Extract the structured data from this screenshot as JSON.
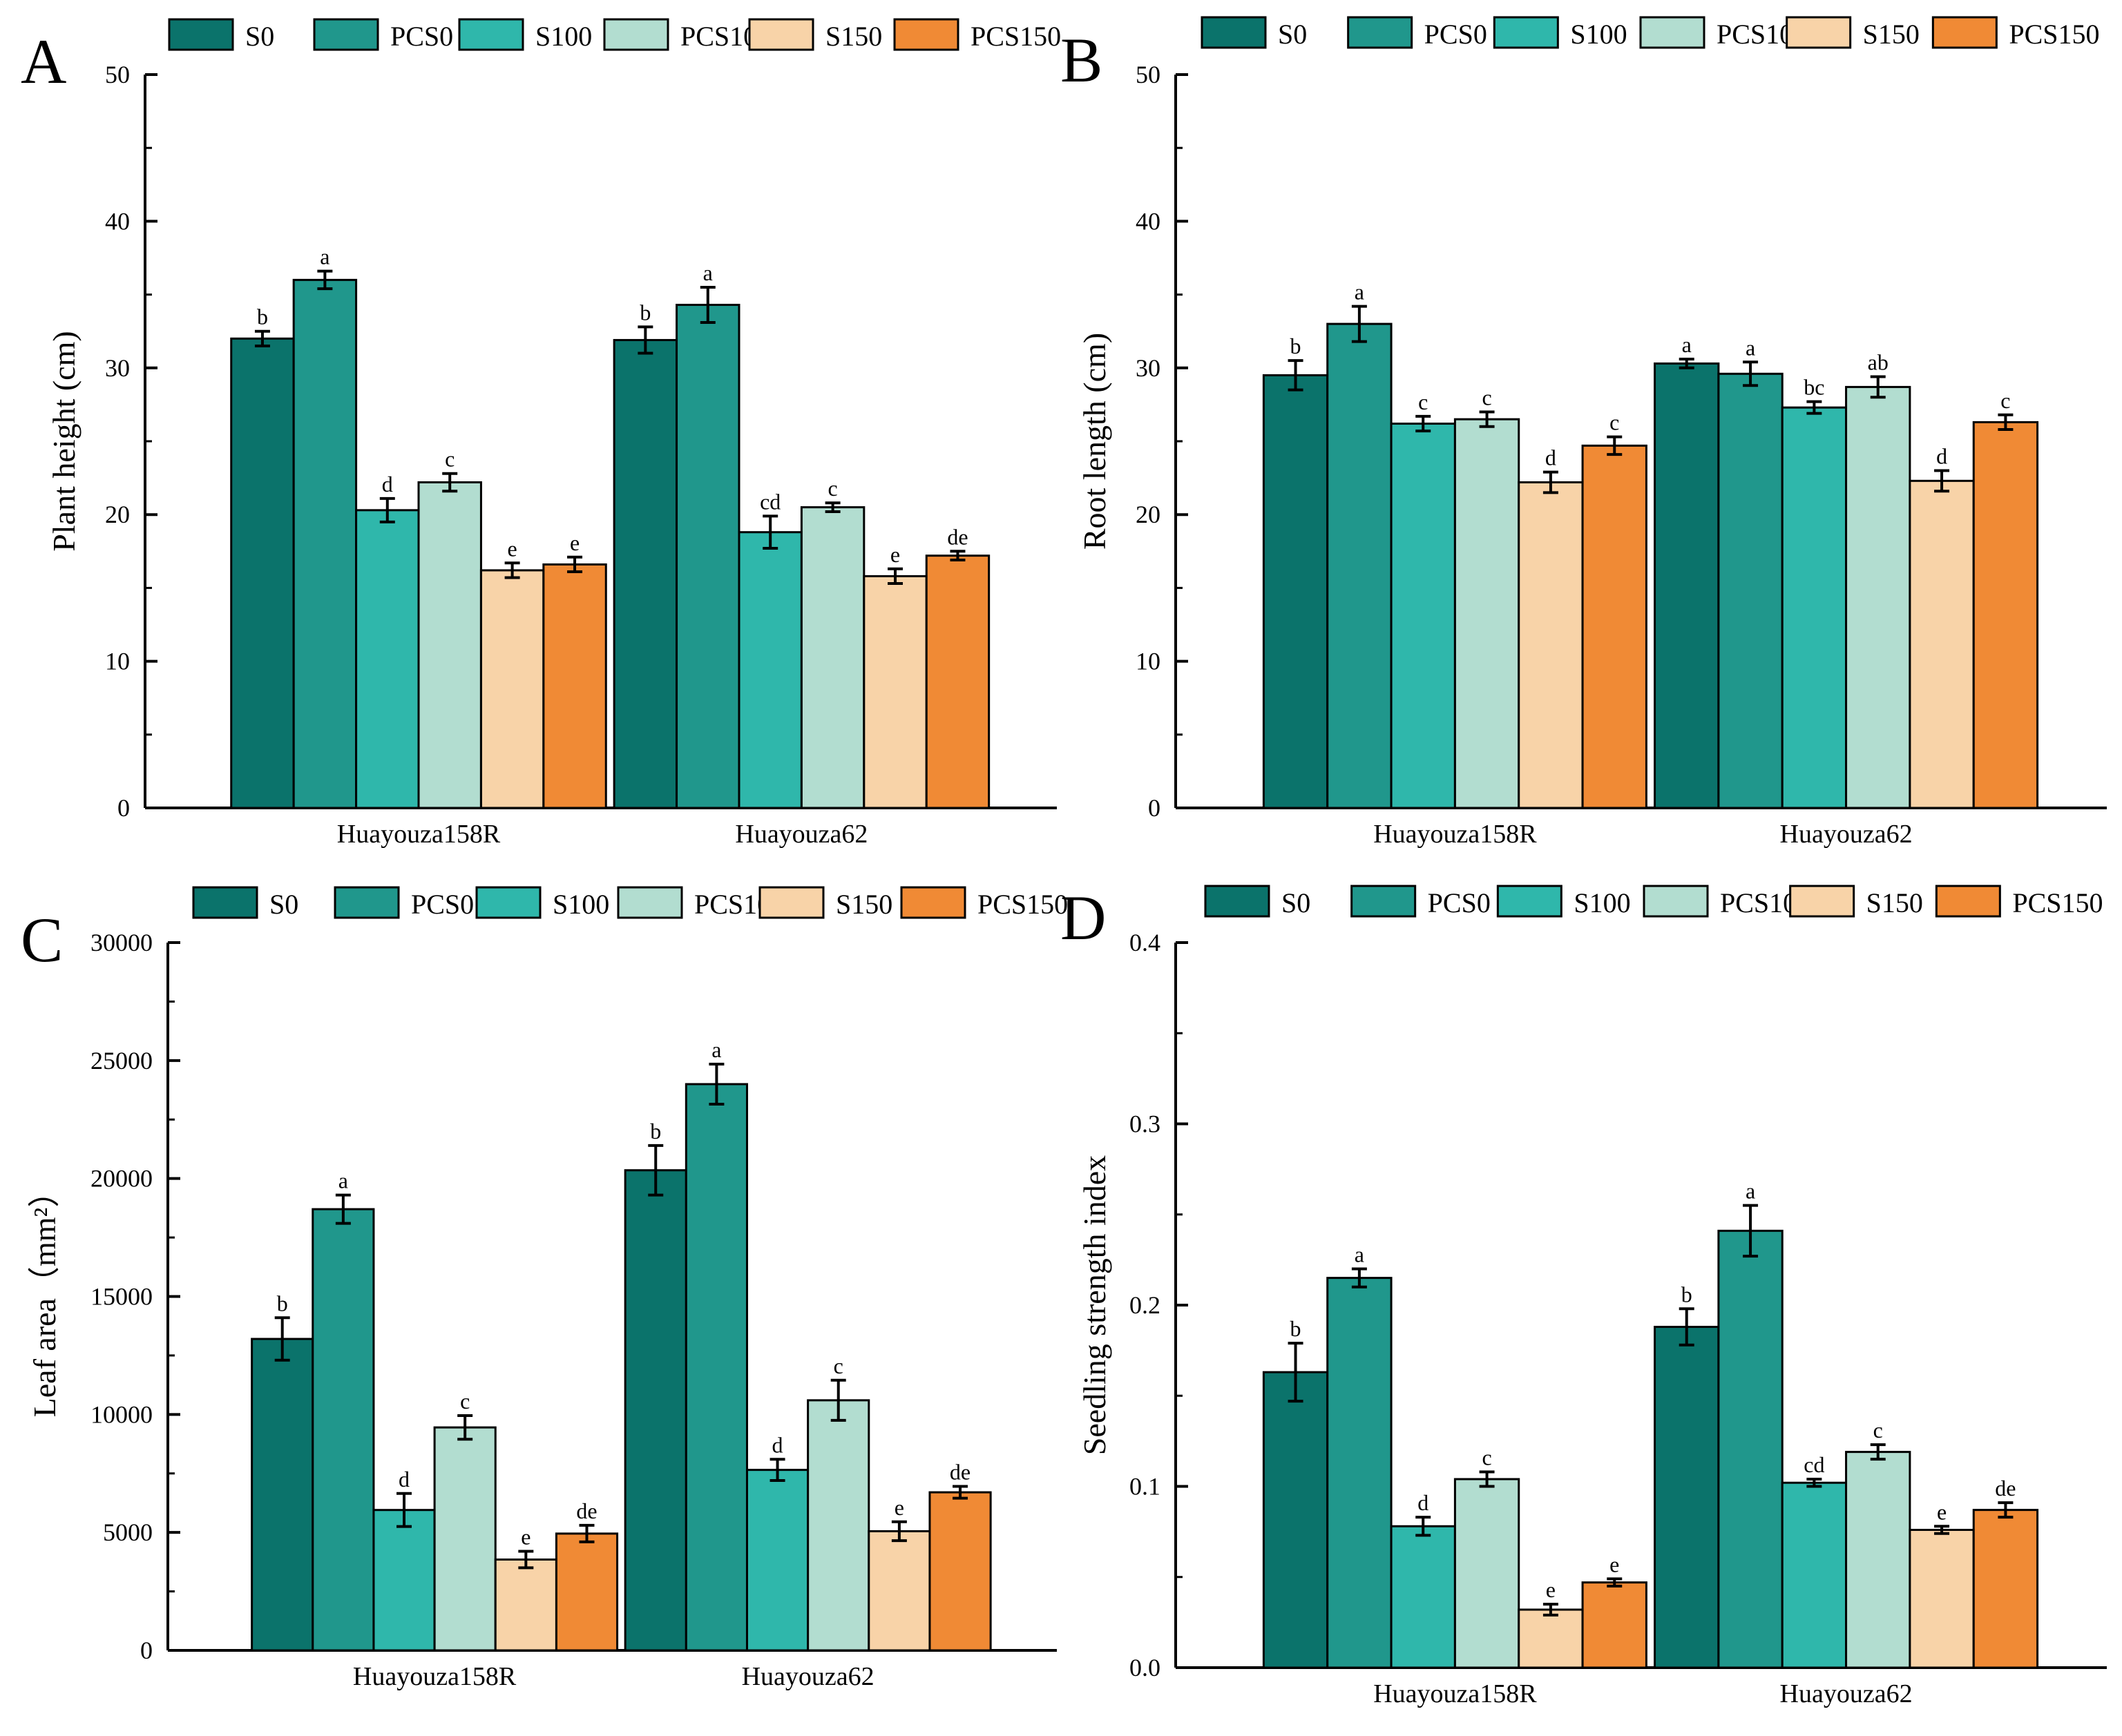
{
  "chart_data": [
    {
      "type": "bar",
      "panel_label": "A",
      "title": "",
      "xlabel": "",
      "ylabel": "Plant height (cm)",
      "ylim": [
        0,
        50
      ],
      "yticks": [
        "0",
        "10",
        "20",
        "30",
        "40",
        "50"
      ],
      "categories": [
        "Huayouza158R",
        "Huayouza62"
      ],
      "legend_position": "top",
      "series": [
        {
          "name": "S0",
          "values": [
            32.0,
            31.9
          ],
          "errors": [
            0.5,
            0.9
          ],
          "letters": [
            "b",
            "b"
          ]
        },
        {
          "name": "PCS0",
          "values": [
            36.0,
            34.3
          ],
          "errors": [
            0.6,
            1.2
          ],
          "letters": [
            "a",
            "a"
          ]
        },
        {
          "name": "S100",
          "values": [
            20.3,
            18.8
          ],
          "errors": [
            0.8,
            1.1
          ],
          "letters": [
            "d",
            "cd"
          ]
        },
        {
          "name": "PCS100",
          "values": [
            22.2,
            20.5
          ],
          "errors": [
            0.6,
            0.3
          ],
          "letters": [
            "c",
            "c"
          ]
        },
        {
          "name": "S150",
          "values": [
            16.2,
            15.8
          ],
          "errors": [
            0.5,
            0.5
          ],
          "letters": [
            "e",
            "e"
          ]
        },
        {
          "name": "PCS150",
          "values": [
            16.6,
            17.2
          ],
          "errors": [
            0.5,
            0.3
          ],
          "letters": [
            "e",
            "de"
          ]
        }
      ]
    },
    {
      "type": "bar",
      "panel_label": "B",
      "title": "",
      "xlabel": "",
      "ylabel": "Root length (cm)",
      "ylim": [
        0,
        50
      ],
      "yticks": [
        "0",
        "10",
        "20",
        "30",
        "40",
        "50"
      ],
      "categories": [
        "Huayouza158R",
        "Huayouza62"
      ],
      "legend_position": "top",
      "series": [
        {
          "name": "S0",
          "values": [
            29.5,
            30.3
          ],
          "errors": [
            1.0,
            0.3
          ],
          "letters": [
            "b",
            "a"
          ]
        },
        {
          "name": "PCS0",
          "values": [
            33.0,
            29.6
          ],
          "errors": [
            1.2,
            0.8
          ],
          "letters": [
            "a",
            "a"
          ]
        },
        {
          "name": "S100",
          "values": [
            26.2,
            27.3
          ],
          "errors": [
            0.5,
            0.4
          ],
          "letters": [
            "c",
            "bc"
          ]
        },
        {
          "name": "PCS100",
          "values": [
            26.5,
            28.7
          ],
          "errors": [
            0.5,
            0.7
          ],
          "letters": [
            "c",
            "ab"
          ]
        },
        {
          "name": "S150",
          "values": [
            22.2,
            22.3
          ],
          "errors": [
            0.7,
            0.7
          ],
          "letters": [
            "d",
            "d"
          ]
        },
        {
          "name": "PCS150",
          "values": [
            24.7,
            26.3
          ],
          "errors": [
            0.6,
            0.5
          ],
          "letters": [
            "c",
            "c"
          ]
        }
      ]
    },
    {
      "type": "bar",
      "panel_label": "C",
      "title": "",
      "xlabel": "",
      "ylabel": "Leaf area（mm²）",
      "ylim": [
        0,
        30000
      ],
      "yticks": [
        "0",
        "5000",
        "10000",
        "15000",
        "20000",
        "25000",
        "30000"
      ],
      "categories": [
        "Huayouza158R",
        "Huayouza62"
      ],
      "legend_position": "top",
      "series": [
        {
          "name": "S0",
          "values": [
            13200,
            20350
          ],
          "errors": [
            900,
            1050
          ],
          "letters": [
            "b",
            "b"
          ]
        },
        {
          "name": "PCS0",
          "values": [
            18700,
            24000
          ],
          "errors": [
            600,
            850
          ],
          "letters": [
            "a",
            "a"
          ]
        },
        {
          "name": "S100",
          "values": [
            5950,
            7650
          ],
          "errors": [
            700,
            450
          ],
          "letters": [
            "d",
            "d"
          ]
        },
        {
          "name": "PCS100",
          "values": [
            9450,
            10600
          ],
          "errors": [
            500,
            850
          ],
          "letters": [
            "c",
            "c"
          ]
        },
        {
          "name": "S150",
          "values": [
            3850,
            5050
          ],
          "errors": [
            350,
            400
          ],
          "letters": [
            "e",
            "e"
          ]
        },
        {
          "name": "PCS150",
          "values": [
            4950,
            6700
          ],
          "errors": [
            350,
            250
          ],
          "letters": [
            "de",
            "de"
          ]
        }
      ]
    },
    {
      "type": "bar",
      "panel_label": "D",
      "title": "",
      "xlabel": "",
      "ylabel": "Seedling strength index",
      "ylim": [
        0,
        0.4
      ],
      "yticks": [
        "0.0",
        "0.1",
        "0.2",
        "0.3",
        "0.4"
      ],
      "categories": [
        "Huayouza158R",
        "Huayouza62"
      ],
      "legend_position": "top",
      "series": [
        {
          "name": "S0",
          "values": [
            0.163,
            0.188
          ],
          "errors": [
            0.016,
            0.01
          ],
          "letters": [
            "b",
            "b"
          ]
        },
        {
          "name": "PCS0",
          "values": [
            0.215,
            0.241
          ],
          "errors": [
            0.005,
            0.014
          ],
          "letters": [
            "a",
            "a"
          ]
        },
        {
          "name": "S100",
          "values": [
            0.078,
            0.102
          ],
          "errors": [
            0.005,
            0.002
          ],
          "letters": [
            "d",
            "cd"
          ]
        },
        {
          "name": "PCS100",
          "values": [
            0.104,
            0.119
          ],
          "errors": [
            0.004,
            0.004
          ],
          "letters": [
            "c",
            "c"
          ]
        },
        {
          "name": "S150",
          "values": [
            0.032,
            0.076
          ],
          "errors": [
            0.003,
            0.002
          ],
          "letters": [
            "e",
            "e"
          ]
        },
        {
          "name": "PCS150",
          "values": [
            0.047,
            0.087
          ],
          "errors": [
            0.002,
            0.004
          ],
          "letters": [
            "e",
            "de"
          ]
        }
      ]
    }
  ],
  "series_colors": {
    "S0": "#0b736b",
    "PCS0": "#20978c",
    "S100": "#2fb7ab",
    "PCS100": "#b2ddd0",
    "S150": "#f8d3a8",
    "PCS150": "#f08a35"
  }
}
